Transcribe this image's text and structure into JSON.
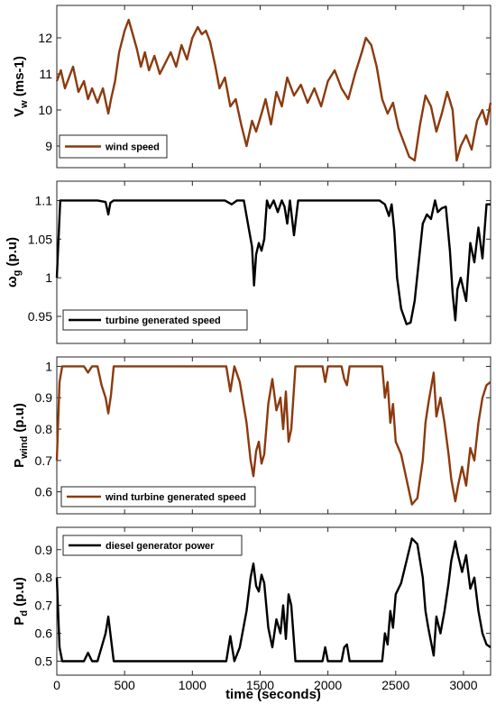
{
  "chart_data": [
    {
      "type": "line",
      "xlim": [
        0,
        3200
      ],
      "ylim": [
        8.4,
        12.9
      ],
      "yticks": [
        9,
        10,
        11,
        12
      ],
      "ylabel_main": "V",
      "ylabel_sub": "w",
      "ylabel_rest": " (ms-1)",
      "legend_position": "bottom-left",
      "grid": false,
      "series": [
        {
          "name": "wind speed",
          "color": "#8b3a0e",
          "x": [
            0,
            30,
            60,
            90,
            120,
            160,
            200,
            230,
            260,
            300,
            340,
            380,
            400,
            430,
            460,
            500,
            530,
            560,
            590,
            620,
            650,
            680,
            720,
            760,
            800,
            840,
            880,
            920,
            960,
            1000,
            1040,
            1070,
            1100,
            1130,
            1170,
            1200,
            1240,
            1280,
            1320,
            1360,
            1400,
            1440,
            1470,
            1510,
            1540,
            1580,
            1620,
            1660,
            1700,
            1750,
            1800,
            1850,
            1900,
            1950,
            2000,
            2050,
            2100,
            2150,
            2200,
            2250,
            2280,
            2320,
            2360,
            2400,
            2440,
            2480,
            2520,
            2560,
            2600,
            2640,
            2680,
            2720,
            2760,
            2800,
            2840,
            2880,
            2920,
            2950,
            2980,
            3020,
            3060,
            3100,
            3140,
            3170,
            3200
          ],
          "values": [
            10.8,
            11.1,
            10.6,
            10.9,
            11.2,
            10.5,
            10.8,
            10.3,
            10.6,
            10.2,
            10.6,
            9.9,
            10.3,
            10.8,
            11.6,
            12.2,
            12.5,
            12.1,
            11.7,
            11.2,
            11.6,
            11.1,
            11.5,
            11.0,
            11.3,
            11.6,
            11.2,
            11.8,
            11.4,
            12.0,
            12.3,
            12.1,
            12.2,
            11.9,
            11.2,
            10.6,
            10.9,
            10.1,
            10.3,
            9.6,
            9.0,
            9.7,
            9.4,
            9.9,
            10.3,
            9.6,
            10.5,
            10.1,
            10.9,
            10.4,
            10.7,
            10.2,
            10.6,
            10.1,
            10.8,
            11.1,
            10.6,
            10.3,
            11.0,
            11.6,
            12.0,
            11.8,
            11.2,
            10.3,
            9.9,
            10.2,
            9.5,
            9.1,
            8.7,
            8.6,
            9.6,
            10.4,
            10.1,
            9.4,
            9.9,
            10.5,
            10.0,
            8.6,
            9.0,
            9.3,
            8.9,
            9.7,
            10.0,
            9.6,
            10.2
          ]
        }
      ]
    },
    {
      "type": "line",
      "xlim": [
        0,
        3200
      ],
      "ylim": [
        0.915,
        1.125
      ],
      "yticks": [
        0.95,
        1,
        1.05,
        1.1
      ],
      "ylabel_main": "ω",
      "ylabel_sub": "g",
      "ylabel_rest": " (p.u)",
      "legend_position": "bottom-left",
      "grid": false,
      "series": [
        {
          "name": "turbine generated speed",
          "color": "#000000",
          "x": [
            0,
            25,
            40,
            80,
            200,
            300,
            360,
            380,
            395,
            420,
            500,
            700,
            900,
            1100,
            1240,
            1290,
            1330,
            1380,
            1410,
            1440,
            1455,
            1470,
            1490,
            1510,
            1530,
            1550,
            1570,
            1600,
            1630,
            1660,
            1680,
            1700,
            1720,
            1750,
            1780,
            1850,
            2000,
            2200,
            2380,
            2420,
            2450,
            2470,
            2490,
            2510,
            2540,
            2580,
            2610,
            2640,
            2670,
            2700,
            2730,
            2760,
            2790,
            2810,
            2840,
            2870,
            2900,
            2920,
            2940,
            2955,
            2980,
            3020,
            3050,
            3080,
            3110,
            3140,
            3170,
            3200
          ],
          "values": [
            1.0,
            1.1,
            1.1,
            1.1,
            1.1,
            1.1,
            1.098,
            1.082,
            1.097,
            1.1,
            1.1,
            1.1,
            1.1,
            1.1,
            1.1,
            1.095,
            1.1,
            1.1,
            1.07,
            1.04,
            0.99,
            1.03,
            1.045,
            1.035,
            1.05,
            1.1,
            1.09,
            1.1,
            1.085,
            1.1,
            1.092,
            1.07,
            1.1,
            1.055,
            1.1,
            1.1,
            1.1,
            1.1,
            1.1,
            1.095,
            1.08,
            1.095,
            1.06,
            1.0,
            0.96,
            0.94,
            0.942,
            0.97,
            1.02,
            1.07,
            1.082,
            1.076,
            1.1,
            1.085,
            1.09,
            1.092,
            1.035,
            0.98,
            0.945,
            0.985,
            1.0,
            0.97,
            1.045,
            1.02,
            1.065,
            1.025,
            1.095,
            1.095
          ]
        }
      ]
    },
    {
      "type": "line",
      "xlim": [
        0,
        3200
      ],
      "ylim": [
        0.53,
        1.03
      ],
      "yticks": [
        0.6,
        0.7,
        0.8,
        0.9,
        1
      ],
      "ylabel_main": "P",
      "ylabel_sub": "wind",
      "ylabel_rest": " (p.u)",
      "legend_position": "bottom-left",
      "grid": false,
      "series": [
        {
          "name": "wind turbine generated speed",
          "color": "#8b3a0e",
          "x": [
            0,
            20,
            40,
            200,
            230,
            260,
            300,
            330,
            360,
            380,
            400,
            420,
            450,
            700,
            1000,
            1250,
            1280,
            1310,
            1350,
            1400,
            1430,
            1450,
            1470,
            1490,
            1510,
            1530,
            1560,
            1590,
            1620,
            1650,
            1670,
            1690,
            1710,
            1730,
            1760,
            1800,
            1900,
            1960,
            1980,
            2000,
            2020,
            2100,
            2120,
            2140,
            2160,
            2400,
            2420,
            2440,
            2460,
            2480,
            2500,
            2540,
            2580,
            2620,
            2660,
            2700,
            2720,
            2740,
            2780,
            2800,
            2830,
            2860,
            2890,
            2910,
            2940,
            2960,
            2990,
            3020,
            3050,
            3080,
            3110,
            3140,
            3170,
            3200
          ],
          "values": [
            0.7,
            0.95,
            1.0,
            1.0,
            0.98,
            1.0,
            1.0,
            0.94,
            0.9,
            0.85,
            0.91,
            1.0,
            1.0,
            1.0,
            1.0,
            1.0,
            0.92,
            1.0,
            0.95,
            0.82,
            0.7,
            0.65,
            0.73,
            0.76,
            0.69,
            0.72,
            0.88,
            0.96,
            0.86,
            0.9,
            0.8,
            0.92,
            0.76,
            0.8,
            1.0,
            1.0,
            1.0,
            1.0,
            0.95,
            1.0,
            1.0,
            1.0,
            0.96,
            0.94,
            1.0,
            1.0,
            0.9,
            0.95,
            0.82,
            0.88,
            0.76,
            0.72,
            0.64,
            0.56,
            0.58,
            0.7,
            0.82,
            0.88,
            0.98,
            0.84,
            0.9,
            0.82,
            0.72,
            0.64,
            0.57,
            0.62,
            0.68,
            0.62,
            0.74,
            0.7,
            0.82,
            0.9,
            0.94,
            0.95
          ]
        }
      ]
    },
    {
      "type": "line",
      "xlim": [
        0,
        3200
      ],
      "ylim": [
        0.45,
        0.98
      ],
      "yticks": [
        0.5,
        0.6,
        0.7,
        0.8,
        0.9
      ],
      "xticks": [
        0,
        500,
        1000,
        1500,
        2000,
        2500,
        3000
      ],
      "xlabel": "time (seconds)",
      "ylabel_main": "P",
      "ylabel_sub": "d",
      "ylabel_rest": " (p.u)",
      "legend_position": "top-left",
      "grid": false,
      "series": [
        {
          "name": "diesel generator power",
          "color": "#000000",
          "x": [
            0,
            20,
            40,
            200,
            230,
            260,
            300,
            330,
            360,
            380,
            400,
            420,
            450,
            700,
            1000,
            1250,
            1280,
            1310,
            1350,
            1400,
            1430,
            1450,
            1470,
            1490,
            1510,
            1530,
            1560,
            1590,
            1620,
            1650,
            1670,
            1690,
            1710,
            1730,
            1760,
            1800,
            1900,
            1960,
            1980,
            2000,
            2020,
            2100,
            2120,
            2140,
            2160,
            2400,
            2420,
            2440,
            2460,
            2480,
            2500,
            2540,
            2580,
            2620,
            2660,
            2700,
            2720,
            2740,
            2780,
            2800,
            2830,
            2860,
            2890,
            2910,
            2940,
            2960,
            2990,
            3020,
            3050,
            3080,
            3110,
            3140,
            3170,
            3200
          ],
          "values": [
            0.8,
            0.55,
            0.5,
            0.5,
            0.53,
            0.5,
            0.5,
            0.55,
            0.6,
            0.66,
            0.58,
            0.5,
            0.5,
            0.5,
            0.5,
            0.5,
            0.59,
            0.5,
            0.55,
            0.68,
            0.8,
            0.85,
            0.77,
            0.75,
            0.81,
            0.78,
            0.62,
            0.55,
            0.65,
            0.6,
            0.7,
            0.58,
            0.74,
            0.7,
            0.5,
            0.5,
            0.5,
            0.5,
            0.55,
            0.5,
            0.5,
            0.5,
            0.55,
            0.56,
            0.5,
            0.5,
            0.6,
            0.56,
            0.68,
            0.62,
            0.74,
            0.78,
            0.86,
            0.94,
            0.92,
            0.8,
            0.68,
            0.62,
            0.52,
            0.66,
            0.6,
            0.68,
            0.78,
            0.86,
            0.93,
            0.88,
            0.82,
            0.88,
            0.76,
            0.8,
            0.68,
            0.6,
            0.56,
            0.55
          ]
        }
      ]
    }
  ]
}
